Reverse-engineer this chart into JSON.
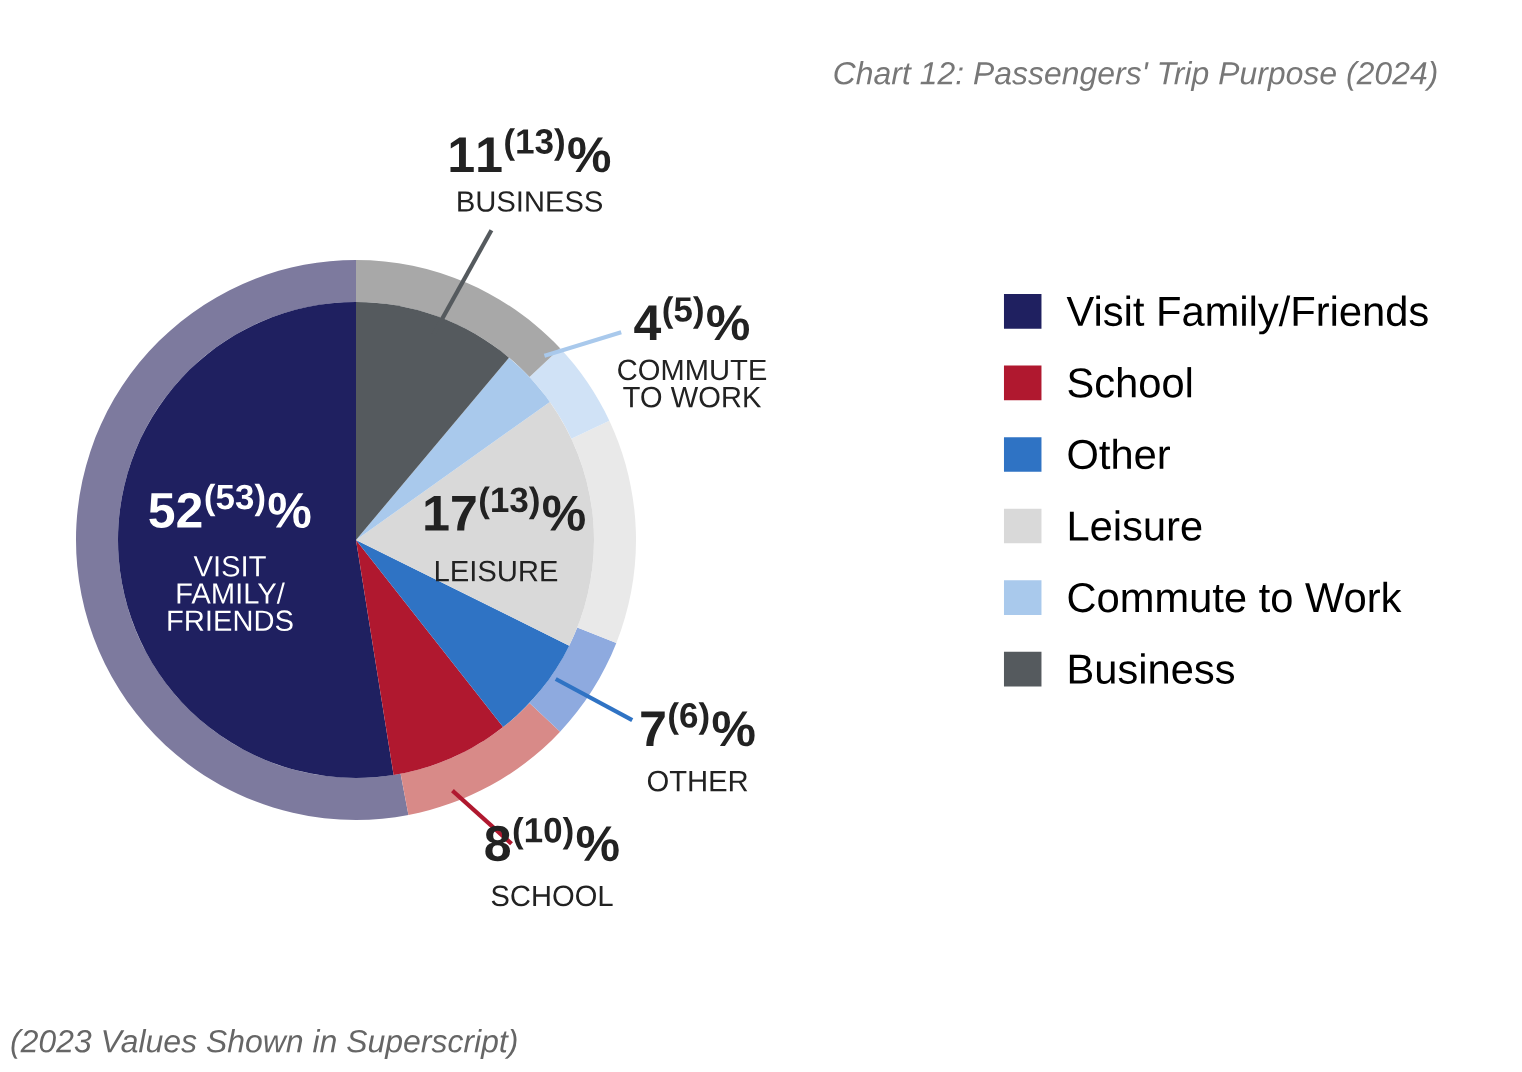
{
  "chart_data": {
    "type": "donut",
    "title": "Chart 12: Passengers' Trip Purpose (2024)",
    "categories": [
      "Visit Family/Friends",
      "School",
      "Other",
      "Leisure",
      "Commute to Work",
      "Business"
    ],
    "series": [
      {
        "colors": [
          "#1f2060",
          "#b0182f",
          "#2f73c4",
          "#d9d9d9",
          "#a9c9ec",
          "#555a5e"
        ],
        "values": [
          52,
          8,
          7,
          17,
          4,
          11
        ],
        "value_labels": [
          "52$^{(53)}$%",
          "8$^{(10)}$%",
          "7$^{(6)}$%",
          "17$^{(13)}$%",
          "4$^{(5)}$%",
          "11$^{(13)}$%"
        ]
      },
      {
        "colors": [
          "#7d7a9e",
          "#d88a88",
          "#8eaadf",
          "#e9e9e9",
          "#d0e2f6",
          "#a8a8a8"
        ],
        "values": [
          53,
          10,
          6,
          13,
          5,
          13
        ]
      }
    ],
    "annotations": [
      "VISIT\nFAMILY/\nFRIENDS",
      "SCHOOL",
      "OTHER",
      "LEISURE",
      "COMMUTE\nTO WORK",
      "BUSINESS",
      "(2023 Values Shown in Superscript)"
    ],
    "legend": "right"
  }
}
